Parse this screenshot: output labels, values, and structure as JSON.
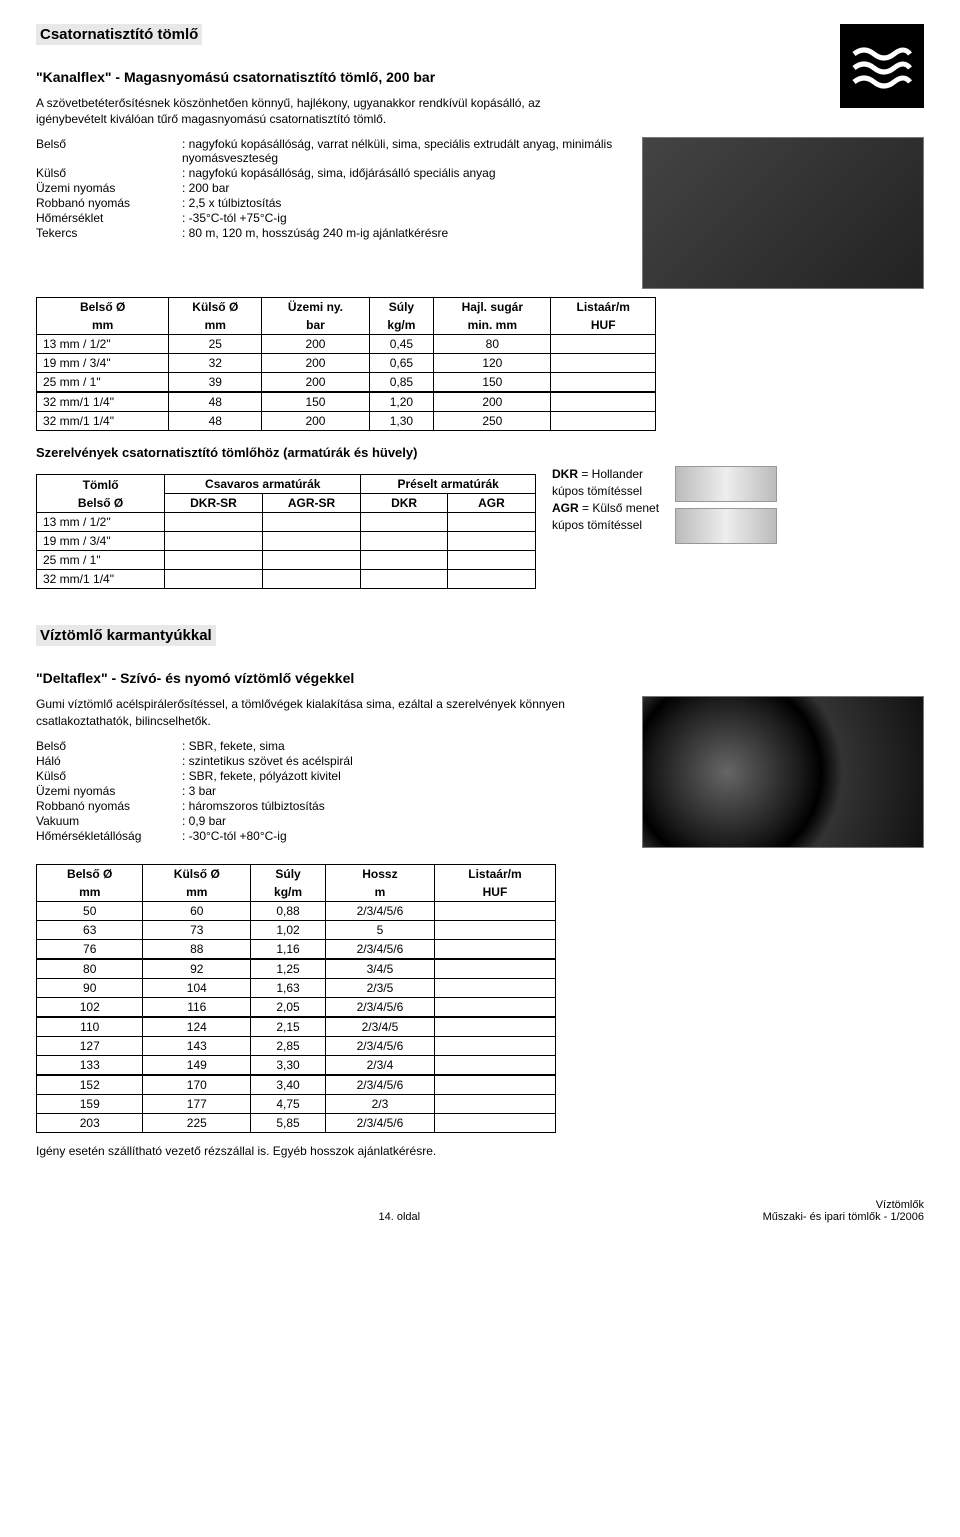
{
  "section1": {
    "title": "Csatornatisztító tömlő",
    "subtitle": "\"Kanalflex\" - Magasnyomású csatornatisztító tömlő, 200 bar",
    "para": "A szövetbetéterősítésnek köszönhetően könnyű, hajlékony, ugyanakkor rendkívül kopásálló, az igénybevételt kiválóan tűrő magasnyomású csatornatisztító tömlő.",
    "specs": [
      [
        "Belső",
        ": nagyfokú kopásállóság, varrat nélküli, sima, speciális extrudált anyag, minimális nyomásveszteség"
      ],
      [
        "Külső",
        ": nagyfokú kopásállóság, sima, időjárásálló speciális anyag"
      ],
      [
        "Üzemi nyomás",
        ": 200 bar"
      ],
      [
        "Robbanó nyomás",
        ": 2,5 x túlbiztosítás"
      ],
      [
        "Hőmérséklet",
        ": -35°C-tól +75°C-ig"
      ],
      [
        "Tekercs",
        ": 80 m, 120 m, hosszúság 240 m-ig ajánlatkérésre"
      ]
    ],
    "table": {
      "head1": [
        "Belső Ø",
        "Külső Ø",
        "Üzemi ny.",
        "Súly",
        "Hajl. sugár",
        "Listaár/m"
      ],
      "head2": [
        "mm",
        "mm",
        "bar",
        "kg/m",
        "min. mm",
        "HUF"
      ],
      "rows": [
        [
          "13 mm / 1/2\"",
          "25",
          "200",
          "0,45",
          "80",
          ""
        ],
        [
          "19 mm / 3/4\"",
          "32",
          "200",
          "0,65",
          "120",
          ""
        ],
        [
          "25 mm /   1\"",
          "39",
          "200",
          "0,85",
          "150",
          ""
        ],
        [
          "32 mm/1 1/4\"",
          "48",
          "150",
          "1,20",
          "200",
          ""
        ],
        [
          "32 mm/1 1/4\"",
          "48",
          "200",
          "1,30",
          "250",
          ""
        ]
      ],
      "group_sep_after": 3
    },
    "fittings_heading": "Szerelvények csatornatisztító tömlőhöz (armatúrák és hüvely)",
    "fittings_table": {
      "head_top": [
        "Tömlő",
        "Csavaros armatúrák",
        "Préselt armatúrák"
      ],
      "head_sub": [
        "Belső Ø",
        "DKR-SR",
        "AGR-SR",
        "DKR",
        "AGR"
      ],
      "rows": [
        [
          "13 mm / 1/2\"",
          "",
          "",
          "",
          ""
        ],
        [
          "19 mm / 3/4\"",
          "",
          "",
          "",
          ""
        ],
        [
          "25 mm /   1\"",
          "",
          "",
          "",
          ""
        ],
        [
          "32 mm/1 1/4\"",
          "",
          "",
          "",
          ""
        ]
      ]
    },
    "legend": {
      "dkr": "DKR = Hollander kúpos tömítéssel",
      "agr": "AGR = Külső menet kúpos tömítéssel"
    }
  },
  "section2": {
    "title": "Víztömlő karmantyúkkal",
    "subtitle": "\"Deltaflex\" - Szívó- és nyomó víztömlő végekkel",
    "para": "Gumi víztömlő acélspirálerősítéssel, a tömlővégek kialakítása sima, ezáltal a szerelvények könnyen csatlakoztathatók, bilincselhetők.",
    "specs": [
      [
        "Belső",
        ": SBR, fekete, sima"
      ],
      [
        "Háló",
        ": szintetikus szövet és acélspirál"
      ],
      [
        "Külső",
        ": SBR, fekete, pólyázott kivitel"
      ],
      [
        "Üzemi nyomás",
        ": 3 bar"
      ],
      [
        "Robbanó nyomás",
        ": háromszoros túlbiztosítás"
      ],
      [
        "Vakuum",
        ": 0,9 bar"
      ],
      [
        "Hőmérsékletállóság",
        ": -30°C-tól +80°C-ig"
      ]
    ],
    "table": {
      "head1": [
        "Belső Ø",
        "Külső Ø",
        "Súly",
        "Hossz",
        "Listaár/m"
      ],
      "head2": [
        "mm",
        "mm",
        "kg/m",
        "m",
        "HUF"
      ],
      "rows": [
        [
          "50",
          "60",
          "0,88",
          "2/3/4/5/6",
          ""
        ],
        [
          "63",
          "73",
          "1,02",
          "5",
          ""
        ],
        [
          "76",
          "88",
          "1,16",
          "2/3/4/5/6",
          ""
        ],
        [
          "80",
          "92",
          "1,25",
          "3/4/5",
          ""
        ],
        [
          "90",
          "104",
          "1,63",
          "2/3/5",
          ""
        ],
        [
          "102",
          "116",
          "2,05",
          "2/3/4/5/6",
          ""
        ],
        [
          "110",
          "124",
          "2,15",
          "2/3/4/5",
          ""
        ],
        [
          "127",
          "143",
          "2,85",
          "2/3/4/5/6",
          ""
        ],
        [
          "133",
          "149",
          "3,30",
          "2/3/4",
          ""
        ],
        [
          "152",
          "170",
          "3,40",
          "2/3/4/5/6",
          ""
        ],
        [
          "159",
          "177",
          "4,75",
          "2/3",
          ""
        ],
        [
          "203",
          "225",
          "5,85",
          "2/3/4/5/6",
          ""
        ]
      ],
      "group_seps": [
        3,
        6,
        9
      ]
    },
    "note": "Igény esetén szállítható vezető rézszállal is. Egyéb hosszok ajánlatkérésre."
  },
  "footer": {
    "page": "14. oldal",
    "right1": "Víztömlők",
    "right2": "Műszaki- és ipari tömlők - 1/2006"
  }
}
